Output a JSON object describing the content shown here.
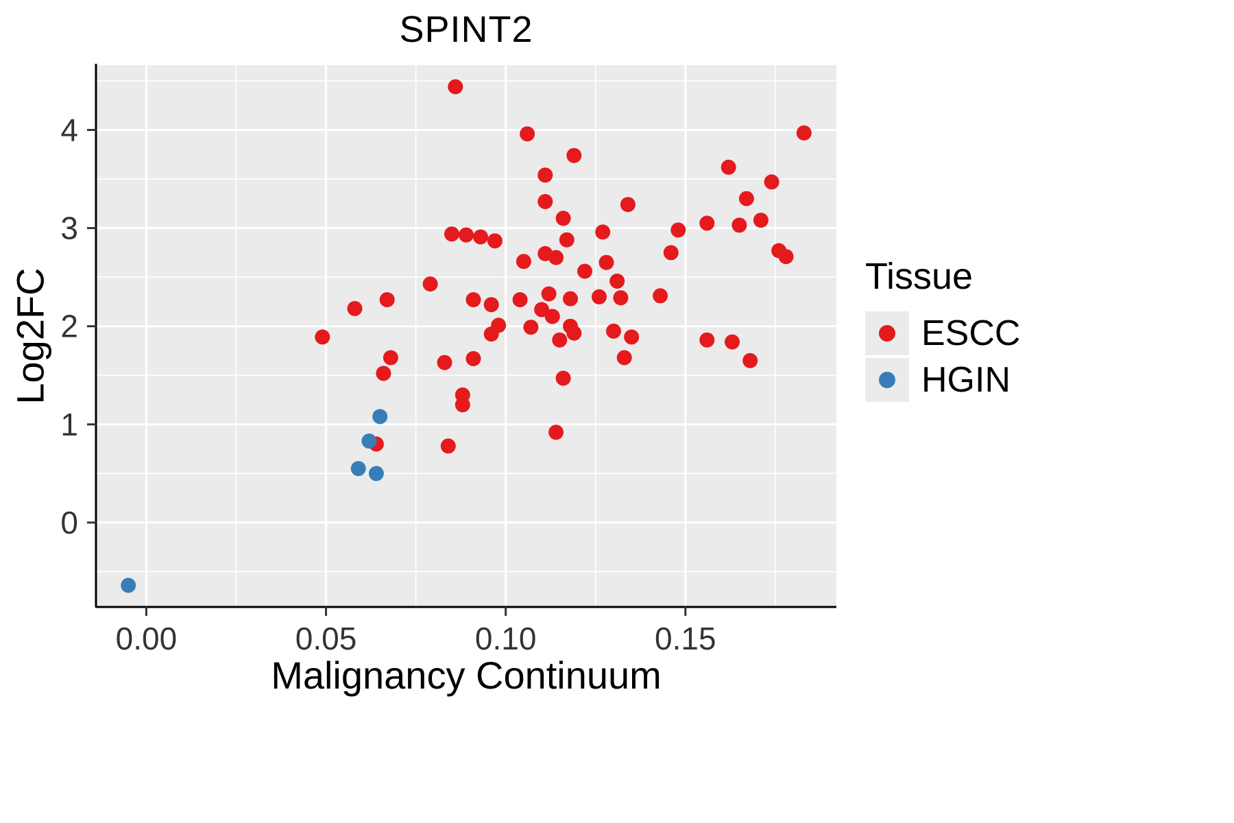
{
  "figure": {
    "title": "SPINT2",
    "x_label": "Malignancy Continuum",
    "y_label": "Log2FC"
  },
  "legend": {
    "title": "Tissue",
    "entries": [
      {
        "label": "ESCC",
        "color": "#E41A1C"
      },
      {
        "label": "HGIN",
        "color": "#377EB8"
      }
    ]
  },
  "chart_data": {
    "type": "scatter",
    "title": "SPINT2",
    "xlabel": "Malignancy Continuum",
    "ylabel": "Log2FC",
    "xlim": [
      -0.014,
      0.192
    ],
    "ylim": [
      -0.86,
      4.66
    ],
    "x_ticks": [
      0.0,
      0.05,
      0.1,
      0.15
    ],
    "x_tick_labels": [
      "0.00",
      "0.05",
      "0.10",
      "0.15"
    ],
    "y_ticks": [
      0,
      1,
      2,
      3,
      4
    ],
    "y_tick_labels": [
      "0",
      "1",
      "2",
      "3",
      "4"
    ],
    "x_minor_ticks": [
      0.025,
      0.075,
      0.125,
      0.175
    ],
    "y_minor_ticks": [
      -0.5,
      0.5,
      1.5,
      2.5,
      3.5,
      4.5
    ],
    "grid": true,
    "panel_background": "#EBEBEB",
    "grid_color": "#FFFFFF",
    "legend_position": "right",
    "series": [
      {
        "name": "ESCC",
        "color": "#E41A1C",
        "points": [
          [
            0.086,
            4.44
          ],
          [
            0.106,
            3.96
          ],
          [
            0.183,
            3.97
          ],
          [
            0.119,
            3.74
          ],
          [
            0.162,
            3.62
          ],
          [
            0.111,
            3.54
          ],
          [
            0.174,
            3.47
          ],
          [
            0.167,
            3.3
          ],
          [
            0.111,
            3.27
          ],
          [
            0.134,
            3.24
          ],
          [
            0.116,
            3.1
          ],
          [
            0.171,
            3.08
          ],
          [
            0.156,
            3.05
          ],
          [
            0.165,
            3.03
          ],
          [
            0.148,
            2.98
          ],
          [
            0.127,
            2.96
          ],
          [
            0.085,
            2.94
          ],
          [
            0.089,
            2.93
          ],
          [
            0.093,
            2.91
          ],
          [
            0.117,
            2.88
          ],
          [
            0.097,
            2.87
          ],
          [
            0.176,
            2.77
          ],
          [
            0.178,
            2.71
          ],
          [
            0.146,
            2.75
          ],
          [
            0.111,
            2.74
          ],
          [
            0.114,
            2.7
          ],
          [
            0.105,
            2.66
          ],
          [
            0.128,
            2.65
          ],
          [
            0.122,
            2.56
          ],
          [
            0.131,
            2.46
          ],
          [
            0.079,
            2.43
          ],
          [
            0.112,
            2.33
          ],
          [
            0.143,
            2.31
          ],
          [
            0.126,
            2.3
          ],
          [
            0.132,
            2.29
          ],
          [
            0.067,
            2.27
          ],
          [
            0.104,
            2.27
          ],
          [
            0.091,
            2.27
          ],
          [
            0.118,
            2.28
          ],
          [
            0.096,
            2.22
          ],
          [
            0.058,
            2.18
          ],
          [
            0.11,
            2.17
          ],
          [
            0.113,
            2.1
          ],
          [
            0.098,
            2.01
          ],
          [
            0.118,
            2.0
          ],
          [
            0.107,
            1.99
          ],
          [
            0.13,
            1.95
          ],
          [
            0.119,
            1.93
          ],
          [
            0.096,
            1.92
          ],
          [
            0.049,
            1.89
          ],
          [
            0.135,
            1.89
          ],
          [
            0.115,
            1.86
          ],
          [
            0.156,
            1.86
          ],
          [
            0.163,
            1.84
          ],
          [
            0.068,
            1.68
          ],
          [
            0.133,
            1.68
          ],
          [
            0.168,
            1.65
          ],
          [
            0.083,
            1.63
          ],
          [
            0.091,
            1.67
          ],
          [
            0.066,
            1.52
          ],
          [
            0.116,
            1.47
          ],
          [
            0.088,
            1.3
          ],
          [
            0.088,
            1.2
          ],
          [
            0.114,
            0.92
          ],
          [
            0.084,
            0.78
          ],
          [
            0.064,
            0.8
          ]
        ]
      },
      {
        "name": "HGIN",
        "color": "#377EB8",
        "points": [
          [
            -0.005,
            -0.64
          ],
          [
            0.059,
            0.55
          ],
          [
            0.064,
            0.5
          ],
          [
            0.062,
            0.83
          ],
          [
            0.065,
            1.08
          ]
        ]
      }
    ]
  }
}
